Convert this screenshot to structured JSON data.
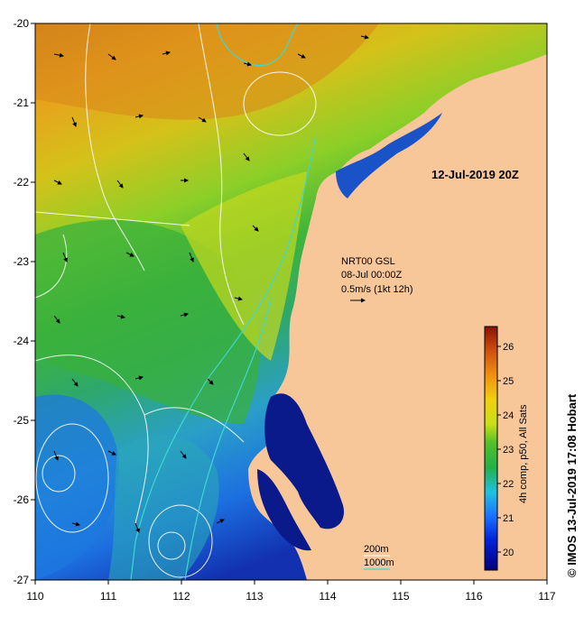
{
  "map": {
    "date_title": "12-Jul-2019 20Z",
    "credit": "© IMOS 13-Jul-2019 17:08 Hobart",
    "x_ticks": [
      "110",
      "111",
      "112",
      "113",
      "114",
      "115",
      "116",
      "117"
    ],
    "y_ticks": [
      "-20",
      "-21",
      "-22",
      "-23",
      "-24",
      "-25",
      "-26",
      "-27"
    ],
    "current_legend": {
      "line1": "NRT00 GSL",
      "line2": "08-Jul 00:00Z",
      "line3": "0.5m/s (1kt 12h)"
    },
    "bathymetry": {
      "label_200": "200m",
      "label_1000": "1000m"
    },
    "colorbar": {
      "title": "4h comp, p50, All Sats",
      "ticks": [
        "26",
        "25",
        "24",
        "23",
        "22",
        "21",
        "20"
      ]
    },
    "colors": {
      "land": "#f7c79a",
      "contour_sst": "#ffffff",
      "isobath": "#3fd7d0"
    }
  }
}
